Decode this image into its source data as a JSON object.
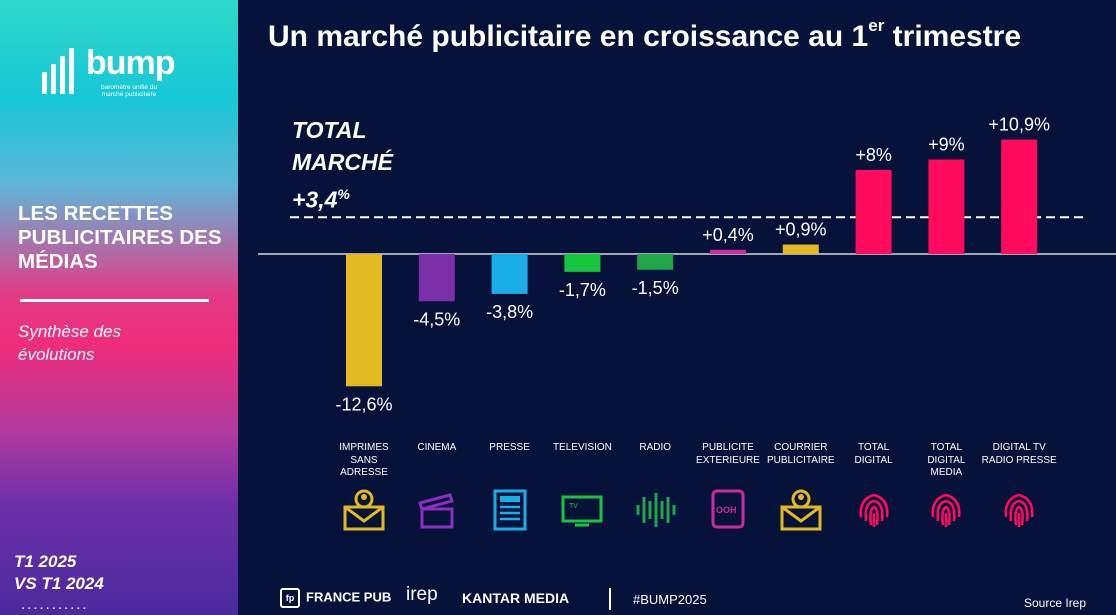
{
  "sidebar": {
    "logo_word": "bump",
    "logo_sub": "baromètre unifié du marché publicitaire",
    "title": "LES RECETTES PUBLICITAIRES DES MÉDIAS",
    "subtitle": "Synthèse des évolutions",
    "period_line1": "T1 2025",
    "period_line2": "VS T1 2024"
  },
  "header": {
    "title_main": "Un marché publicitaire en croissance au 1",
    "title_sup": "er",
    "title_end": " trimestre"
  },
  "total": {
    "line1": "TOTAL",
    "line2": "MARCHÉ",
    "value": "+3,4",
    "unit": "%"
  },
  "chart_data": {
    "type": "bar",
    "title": "Un marché publicitaire en croissance au 1er trimestre",
    "reference_line": {
      "label": "TOTAL MARCHÉ",
      "value": 3.4
    },
    "ylim": [
      -12.6,
      10.9
    ],
    "categories": [
      "IMPRIMES SANS ADRESSE",
      "CINEMA",
      "PRESSE",
      "TELEVISION",
      "RADIO",
      "PUBLICITE EXTERIEURE",
      "COURRIER PUBLICITAIRE",
      "TOTAL DIGITAL",
      "TOTAL DIGITAL MEDIA",
      "DIGITAL TV RADIO PRESSE"
    ],
    "category_lines": [
      [
        "IMPRIMES",
        "SANS",
        "ADRESSE"
      ],
      [
        "CINEMA"
      ],
      [
        "PRESSE"
      ],
      [
        "TELEVISION"
      ],
      [
        "RADIO"
      ],
      [
        "PUBLICITE",
        "EXTERIEURE"
      ],
      [
        "COURRIER",
        "PUBLICITAIRE"
      ],
      [
        "TOTAL",
        "DIGITAL"
      ],
      [
        "TOTAL",
        "DIGITAL",
        "MEDIA"
      ],
      [
        "DIGITAL TV",
        "RADIO PRESSE"
      ]
    ],
    "values": [
      -12.6,
      -4.5,
      -3.8,
      -1.7,
      -1.5,
      0.4,
      0.9,
      8,
      9,
      10.9
    ],
    "value_labels": [
      "-12,6%",
      "-4,5%",
      "-3,8%",
      "-1,7%",
      "-1,5%",
      "+0,4%",
      "+0,9%",
      "+8%",
      "+9%",
      "+10,9%"
    ],
    "colors": [
      "#e3b922",
      "#7b2fa8",
      "#19aee8",
      "#19c43f",
      "#1fa64a",
      "#cc2a9d",
      "#e3b922",
      "#ff0a5c",
      "#ff0a5c",
      "#ff0a5c"
    ],
    "icons": [
      "person-envelope-icon",
      "clapperboard-icon",
      "newspaper-icon",
      "tv-icon",
      "radio-wave-icon",
      "ooh-billboard-icon",
      "person-envelope-icon",
      "fingerprint-icon",
      "fingerprint-icon",
      "fingerprint-icon"
    ],
    "icon_colors": [
      "#e3b922",
      "#8a2fc0",
      "#19aee8",
      "#19c43f",
      "#1fa64a",
      "#cc2a9d",
      "#e3b922",
      "#ff0a5c",
      "#ff0a5c",
      "#ff0a5c"
    ]
  },
  "footer": {
    "francepub": "FRANCE PUB",
    "irep": "irep",
    "kantar": "KANTAR MEDIA",
    "hashtag": "#BUMP2025",
    "source": "Source Irep"
  }
}
